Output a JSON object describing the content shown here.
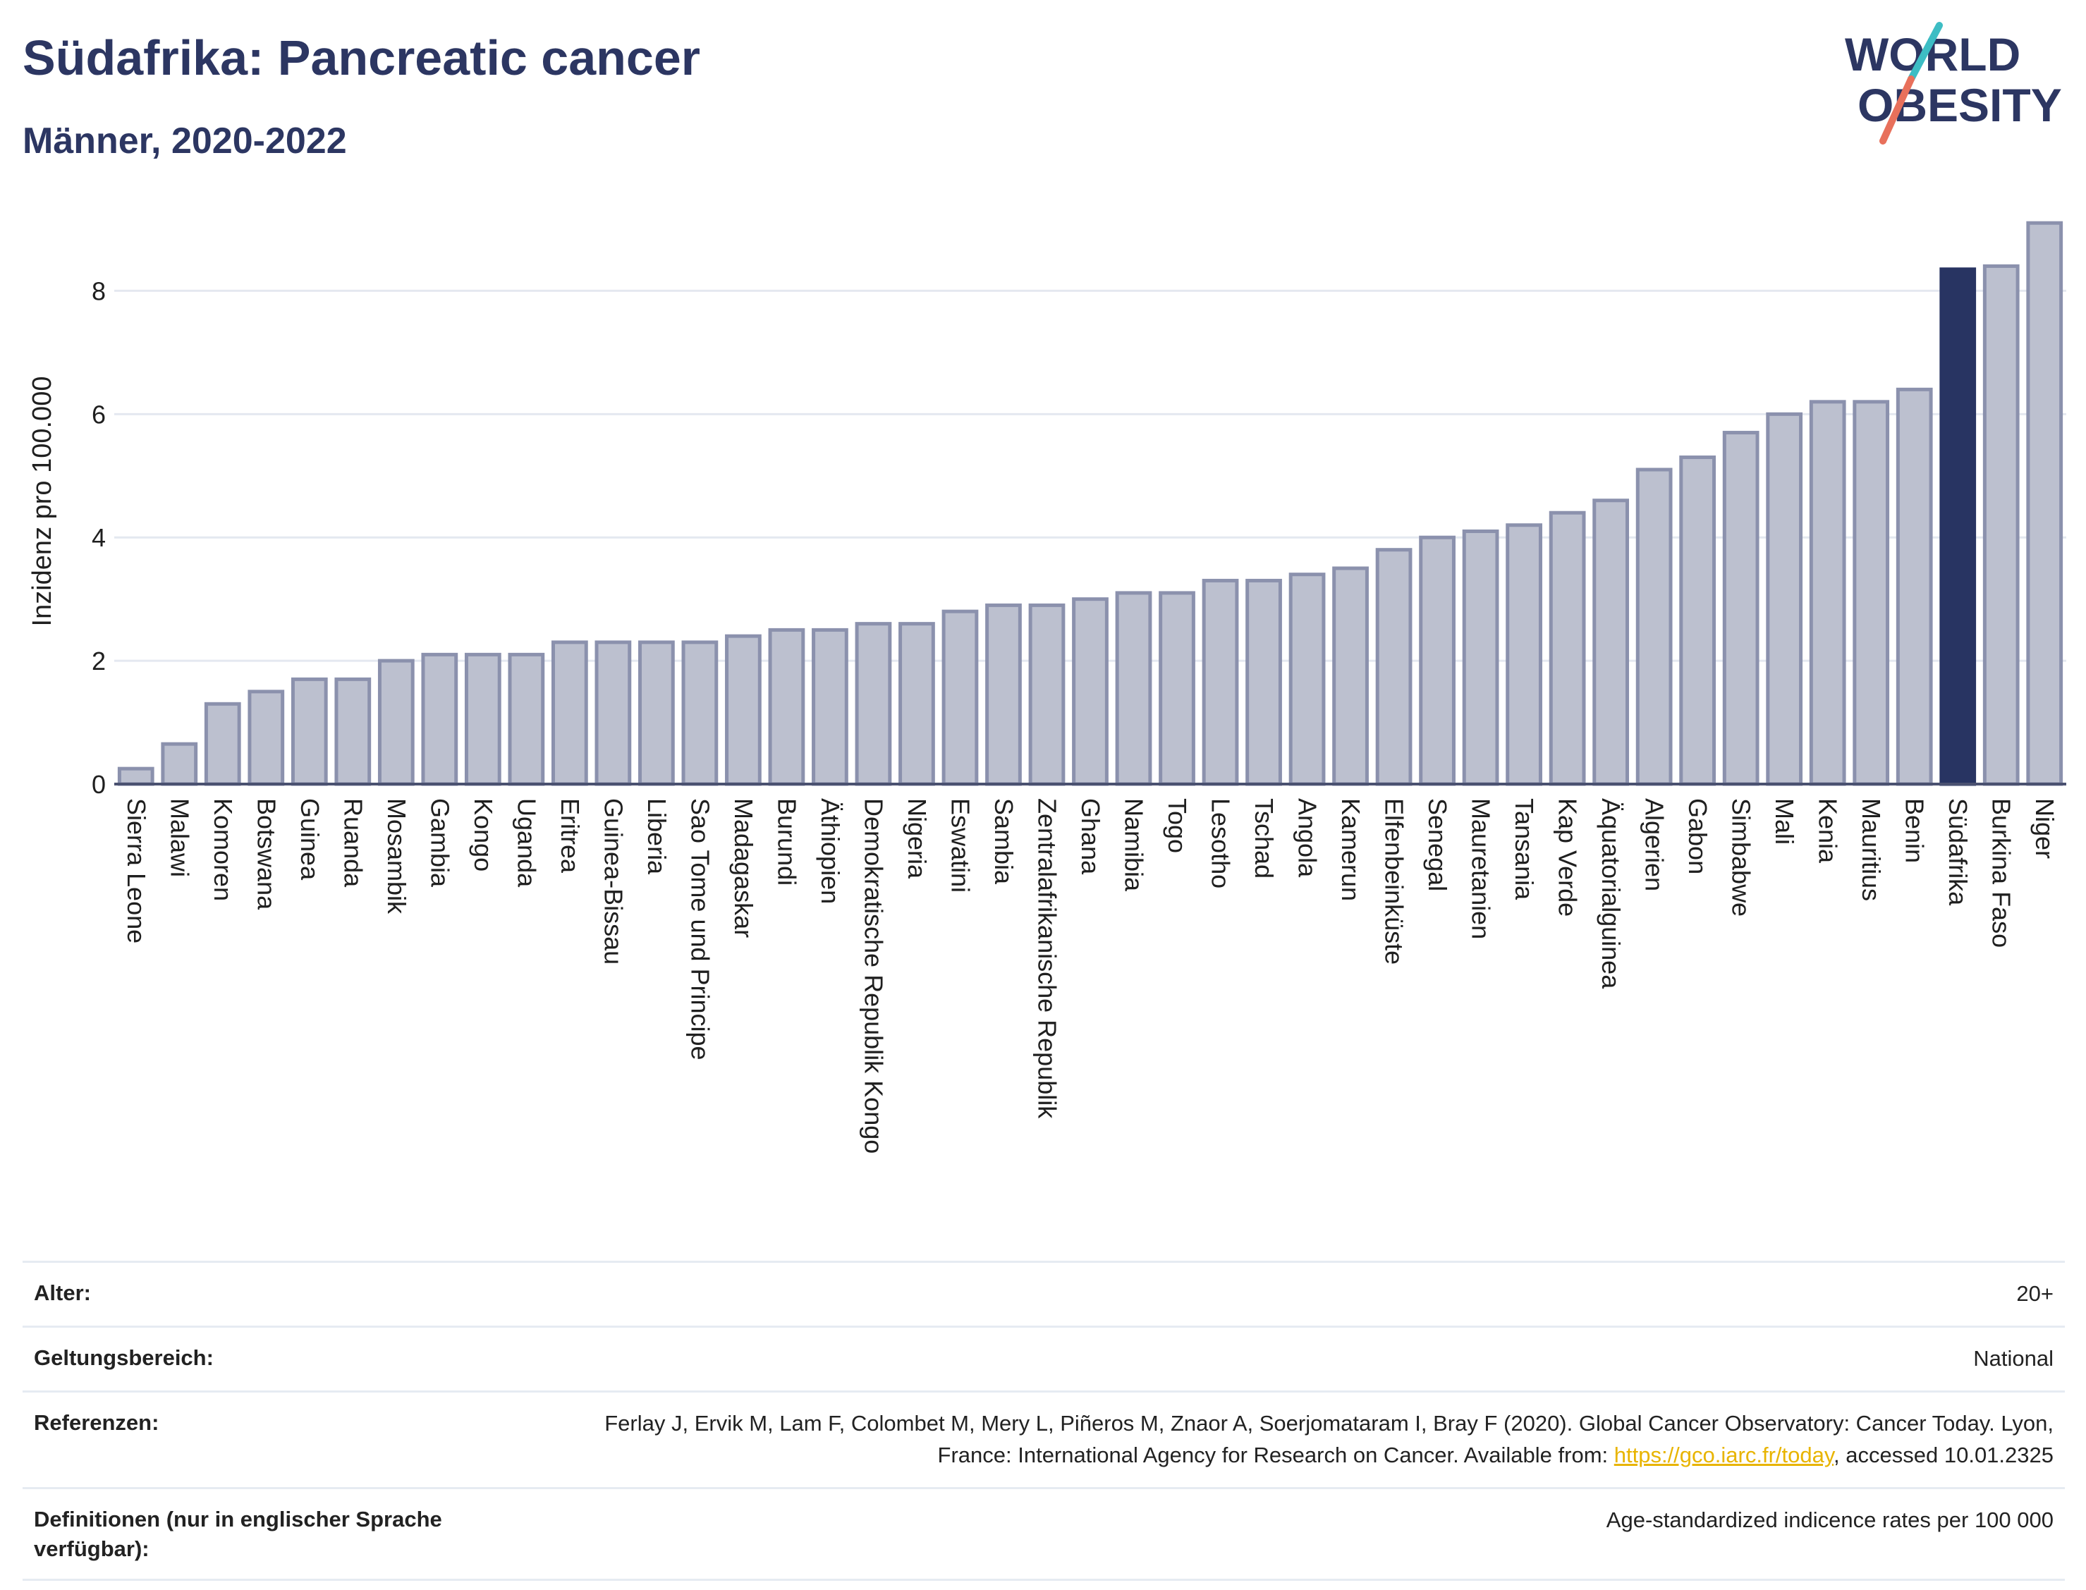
{
  "header": {
    "title": "Südafrika: Pancreatic cancer",
    "subtitle": "Männer, 2020-2022"
  },
  "logo": {
    "line1": "WORLD",
    "line2": "OBESITY",
    "text_color": "#2c3662",
    "slash_colors": [
      "#3dbdc4",
      "#e8705b"
    ]
  },
  "colors": {
    "bar_default": "#bcc0cf",
    "bar_outline": "#8b91ad",
    "bar_highlight": "#283462",
    "grid": "#e4e8f0",
    "axis_text": "#1f1f1f"
  },
  "chart_data": {
    "type": "bar",
    "title": "Südafrika: Pancreatic cancer",
    "subtitle": "Männer, 2020-2022",
    "xlabel": "",
    "ylabel": "Inzidenz pro 100.000",
    "ylim": [
      0,
      9.4
    ],
    "yticks": [
      0,
      2,
      4,
      6,
      8
    ],
    "grid": true,
    "highlight": "Südafrika",
    "categories": [
      "Sierra Leone",
      "Malawi",
      "Komoren",
      "Botswana",
      "Guinea",
      "Ruanda",
      "Mosambik",
      "Gambia",
      "Kongo",
      "Uganda",
      "Eritrea",
      "Guinea-Bissau",
      "Liberia",
      "Sao Tome und Principe",
      "Madagaskar",
      "Burundi",
      "Äthiopien",
      "Demokratische Republik Kongo",
      "Nigeria",
      "Eswatini",
      "Sambia",
      "Zentralafrikanische Republik",
      "Ghana",
      "Namibia",
      "Togo",
      "Lesotho",
      "Tschad",
      "Angola",
      "Kamerun",
      "Elfenbeinküste",
      "Senegal",
      "Mauretanien",
      "Tansania",
      "Kap Verde",
      "Äquatorialguinea",
      "Algerien",
      "Gabon",
      "Simbabwe",
      "Mali",
      "Kenia",
      "Mauritius",
      "Benin",
      "Südafrika",
      "Burkina Faso",
      "Niger"
    ],
    "values": [
      0.25,
      0.65,
      1.3,
      1.5,
      1.7,
      1.7,
      2.0,
      2.1,
      2.1,
      2.1,
      2.3,
      2.3,
      2.3,
      2.3,
      2.4,
      2.5,
      2.5,
      2.6,
      2.6,
      2.8,
      2.9,
      2.9,
      3.0,
      3.1,
      3.1,
      3.3,
      3.3,
      3.4,
      3.5,
      3.8,
      4.0,
      4.1,
      4.2,
      4.4,
      4.6,
      5.1,
      5.3,
      5.7,
      6.0,
      6.2,
      6.2,
      6.4,
      8.35,
      8.4,
      9.1
    ]
  },
  "footer": {
    "rows": [
      {
        "label": "Alter:",
        "value": "20+"
      },
      {
        "label": "Geltungsbereich:",
        "value": "National"
      },
      {
        "label": "Referenzen:",
        "value_before": "Ferlay J, Ervik M, Lam F, Colombet M, Mery L, Piñeros M, Znaor A, Soerjomataram I, Bray F (2020). Global Cancer Observatory: Cancer Today. Lyon, France: International Agency for Research on Cancer. Available from: ",
        "link": "https://gco.iarc.fr/today",
        "value_after": ", accessed 10.01.2325"
      },
      {
        "label": "Definitionen (nur in englischer Sprache verfügbar):",
        "value": "Age-standardized indicence rates per 100 000"
      }
    ]
  }
}
